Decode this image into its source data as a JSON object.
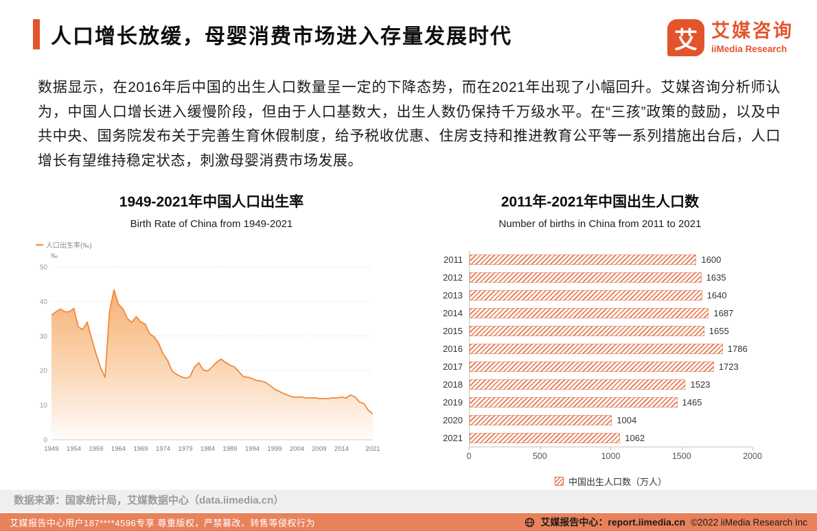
{
  "colors": {
    "brand": "#E4542B",
    "line": "#F0883C",
    "hatch": "#E8714A",
    "footer_bar": "#E9815B"
  },
  "header": {
    "title": "人口增长放缓，母婴消费市场进入存量发展时代",
    "logo_mark": "艾",
    "logo_cn": "艾媒咨询",
    "logo_en": "iiMedia Research"
  },
  "intro": "数据显示，在2016年后中国的出生人口数量呈一定的下降态势，而在2021年出现了小幅回升。艾媒咨询分析师认为，中国人口增长进入缓慢阶段，但由于人口基数大，出生人数仍保持千万级水平。在“三孩”政策的鼓励，以及中共中央、国务院发布关于完善生育休假制度，给予税收优惠、住房支持和推进教育公平等一系列措施出台后，人口增长有望维持稳定状态，刺激母婴消费市场发展。",
  "chart_data": [
    {
      "type": "line",
      "title": "1949-2021年中国人口出生率",
      "subtitle": "Birth Rate of China from 1949-2021",
      "legend": "人口出生率(‰)",
      "unit": "‰",
      "ylim": [
        0,
        50
      ],
      "yticks": [
        0,
        10,
        20,
        30,
        40,
        50
      ],
      "xticks": [
        1949,
        1954,
        1959,
        1964,
        1969,
        1974,
        1979,
        1984,
        1989,
        1994,
        1999,
        2004,
        2009,
        2014,
        2021
      ],
      "grid": true,
      "legend_position": "top-left",
      "years": [
        1949,
        1950,
        1951,
        1952,
        1953,
        1954,
        1955,
        1956,
        1957,
        1958,
        1959,
        1960,
        1961,
        1962,
        1963,
        1964,
        1965,
        1966,
        1967,
        1968,
        1969,
        1970,
        1971,
        1972,
        1973,
        1974,
        1975,
        1976,
        1977,
        1978,
        1979,
        1980,
        1981,
        1982,
        1983,
        1984,
        1985,
        1986,
        1987,
        1988,
        1989,
        1990,
        1991,
        1992,
        1993,
        1994,
        1995,
        1996,
        1997,
        1998,
        1999,
        2000,
        2001,
        2002,
        2003,
        2004,
        2005,
        2006,
        2007,
        2008,
        2009,
        2010,
        2011,
        2012,
        2013,
        2014,
        2015,
        2016,
        2017,
        2018,
        2019,
        2020,
        2021
      ],
      "values": [
        36.0,
        37.0,
        37.8,
        37.0,
        37.0,
        37.97,
        32.6,
        31.9,
        34.03,
        29.22,
        24.78,
        20.86,
        18.02,
        37.01,
        43.37,
        39.14,
        37.88,
        35.05,
        33.96,
        35.59,
        34.11,
        33.43,
        30.65,
        29.77,
        27.93,
        24.82,
        23.01,
        19.91,
        18.93,
        18.25,
        17.82,
        18.21,
        20.91,
        22.28,
        20.19,
        19.9,
        21.04,
        22.43,
        23.33,
        22.37,
        21.58,
        21.06,
        19.68,
        18.24,
        18.09,
        17.7,
        17.12,
        16.98,
        16.57,
        15.64,
        14.64,
        14.03,
        13.38,
        12.86,
        12.41,
        12.29,
        12.4,
        12.09,
        12.1,
        12.14,
        11.95,
        11.9,
        11.93,
        12.1,
        12.08,
        12.37,
        12.07,
        12.95,
        12.43,
        10.94,
        10.48,
        8.52,
        7.52
      ]
    },
    {
      "type": "bar",
      "orientation": "horizontal",
      "title": "2011年-2021年中国出生人口数",
      "subtitle": "Number of births in China from 2011 to 2021",
      "legend": "中国出生人口数（万人）",
      "categories": [
        "2011",
        "2012",
        "2013",
        "2014",
        "2015",
        "2016",
        "2017",
        "2018",
        "2019",
        "2020",
        "2021"
      ],
      "values": [
        1600,
        1635,
        1640,
        1687,
        1655,
        1786,
        1723,
        1523,
        1465,
        1004,
        1062
      ],
      "xlim": [
        0,
        2000
      ],
      "xticks": [
        0,
        500,
        1000,
        1500,
        2000
      ],
      "legend_position": "bottom"
    }
  ],
  "footer": {
    "source": "数据来源：国家统计局，艾媒数据中心（data.iimedia.cn）",
    "watermark": "艾媒报告中心用户187****4596专享 尊重版权，严禁篡改、转售等侵权行为",
    "site": "艾媒报告中心：report.iimedia.cn",
    "copyright": "©2022  iiMedia Research  Inc"
  }
}
